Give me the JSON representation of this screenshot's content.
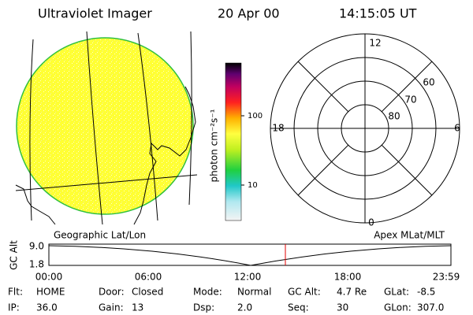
{
  "header": {
    "title": "Ultraviolet Imager",
    "date": "20 Apr 00",
    "time": "14:15:05 UT"
  },
  "colorbar": {
    "label": "photon cm⁻²s⁻¹",
    "ticks": [
      "100",
      "10"
    ]
  },
  "polar": {
    "mlt_labels": [
      "12",
      "18",
      "6",
      "0"
    ],
    "mlat_labels": [
      "60",
      "70",
      "80"
    ]
  },
  "timeline": {
    "left_title": "Geographic Lat/Lon",
    "right_title": "Apex MLat/MLT",
    "y_label": "GC Alt",
    "y_ticks": [
      "9.0",
      "1.8"
    ],
    "x_ticks": [
      "00:00",
      "06:00",
      "12:00",
      "18:00",
      "23:59"
    ]
  },
  "info": {
    "rows": [
      [
        [
          "Flt:",
          "HOME"
        ],
        [
          "Door:",
          "Closed"
        ],
        [
          "Mode:",
          "Normal"
        ],
        [
          "GC Alt:",
          "4.7 Re"
        ],
        [
          "GLat:",
          "-8.5"
        ]
      ],
      [
        [
          "IP:",
          "36.0"
        ],
        [
          "Gain:",
          "13"
        ],
        [
          "Dsp:",
          "2.0"
        ],
        [
          "Seq:",
          "30"
        ],
        [
          "GLon:",
          "307.0"
        ]
      ]
    ]
  }
}
